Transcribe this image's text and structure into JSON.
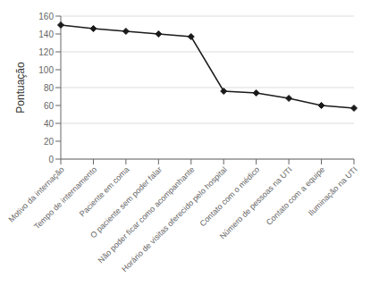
{
  "chart_data": {
    "type": "line",
    "categories": [
      "Motivo da internação",
      "Tempo de internamento",
      "Paciente em coma",
      "O paciente sem poder falar",
      "Não poder ficar como acompanhante",
      "Horário de visitas oferecido pelo hospital",
      "Contato com o médico",
      "Número de pessoas na UTI",
      "Contato com a equipe",
      "Iluminação na UTI"
    ],
    "values": [
      150,
      146,
      143,
      140,
      137,
      76,
      74,
      68,
      60,
      57
    ],
    "color": "#1a1a1a",
    "marker": "diamond",
    "ylabel": "Pontuação",
    "ylim": [
      0,
      160
    ],
    "yticks": [
      0,
      20,
      40,
      60,
      80,
      100,
      120,
      140,
      160
    ],
    "grid": true
  }
}
